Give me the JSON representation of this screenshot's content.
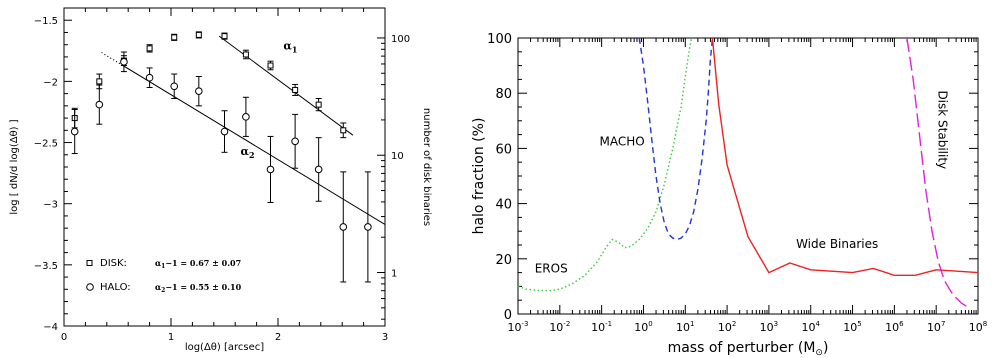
{
  "chart_data": [
    {
      "type": "scatter",
      "xlabel": "log(Δθ) [arcsec]",
      "ylabel": "log [ dN/d log(Δθ) ]",
      "y2label": "number of disk binaries",
      "xlim": [
        0,
        3
      ],
      "ylim": [
        -4,
        -1.4
      ],
      "y2_tick_labels": [
        "1",
        "10",
        "100"
      ],
      "y2_tick_values": [
        1,
        10,
        100
      ],
      "x_tick_labels": [
        "0",
        "1",
        "2",
        "3"
      ],
      "y_tick_labels": [
        "-1.5",
        "-2",
        "-2.5",
        "-3",
        "-3.5",
        "-4"
      ],
      "series": [
        {
          "name": "DISK:",
          "marker": "square",
          "points": [
            {
              "x": 0.1,
              "y": -2.3,
              "yerr": 0.08
            },
            {
              "x": 0.33,
              "y": -2.0,
              "yerr": 0.06
            },
            {
              "x": 0.56,
              "y": -1.83,
              "yerr": 0.04
            },
            {
              "x": 0.8,
              "y": -1.73,
              "yerr": 0.03
            },
            {
              "x": 1.03,
              "y": -1.64,
              "yerr": 0.025
            },
            {
              "x": 1.26,
              "y": -1.62,
              "yerr": 0.025
            },
            {
              "x": 1.5,
              "y": -1.63,
              "yerr": 0.025
            },
            {
              "x": 1.7,
              "y": -1.78,
              "yerr": 0.035
            },
            {
              "x": 1.93,
              "y": -1.87,
              "yerr": 0.035
            },
            {
              "x": 2.16,
              "y": -2.07,
              "yerr": 0.045
            },
            {
              "x": 2.38,
              "y": -2.19,
              "yerr": 0.05
            },
            {
              "x": 2.61,
              "y": -2.4,
              "yerr": 0.06
            }
          ]
        },
        {
          "name": "HALO:",
          "marker": "circle",
          "points": [
            {
              "x": 0.1,
              "y": -2.41,
              "yerr": 0.18
            },
            {
              "x": 0.33,
              "y": -2.19,
              "yerr": 0.16
            },
            {
              "x": 0.56,
              "y": -1.84,
              "yerr": 0.08
            },
            {
              "x": 0.8,
              "y": -1.97,
              "yerr": 0.08
            },
            {
              "x": 1.03,
              "y": -2.04,
              "yerr": 0.1
            },
            {
              "x": 1.26,
              "y": -2.08,
              "yerr": 0.12
            },
            {
              "x": 1.5,
              "y": -2.41,
              "yerr": 0.17
            },
            {
              "x": 1.7,
              "y": -2.29,
              "yerr": 0.16
            },
            {
              "x": 1.93,
              "y": -2.72,
              "yerr": 0.27
            },
            {
              "x": 2.16,
              "y": -2.49,
              "yerr": 0.22
            },
            {
              "x": 2.38,
              "y": -2.72,
              "yerr": 0.26
            },
            {
              "x": 2.61,
              "y": -3.19,
              "yerr": 0.45
            },
            {
              "x": 2.84,
              "y": -3.19,
              "yerr": 0.45
            }
          ]
        }
      ],
      "fits": [
        {
          "label": "α1",
          "x": [
            1.45,
            2.7
          ],
          "y": [
            -1.63,
            -2.44
          ],
          "dotted_x": null
        },
        {
          "label": "α2",
          "x": [
            0.55,
            3.0
          ],
          "y": [
            -1.87,
            -3.17
          ],
          "dotted_x": [
            0.35,
            0.55
          ]
        }
      ],
      "fit_labels": [
        {
          "text": "α",
          "sub": "1",
          "x": 2.05,
          "y": -1.74
        },
        {
          "text": "α",
          "sub": "2",
          "x": 1.65,
          "y": -2.6
        }
      ],
      "legend": [
        {
          "marker": "square",
          "name": "DISK:",
          "formula_main": "α",
          "formula_sub": "1",
          "formula_rest": "−1  =  0.67 ± 0.07"
        },
        {
          "marker": "circle",
          "name": "HALO:",
          "formula_main": "α",
          "formula_sub": "2",
          "formula_rest": "−1  =  0.55 ± 0.10"
        }
      ],
      "legend_placement": "bottom-left"
    },
    {
      "type": "line",
      "xlabel": "mass of perturber (M⊙)",
      "xlabel_main": "mass of perturber (M",
      "xlabel_sub": "⊙",
      "xlabel_end": ")",
      "ylabel": "halo fraction (%)",
      "xscale": "log",
      "xlim": [
        -3,
        8
      ],
      "ylim": [
        0,
        100
      ],
      "x_tick_exponents": [
        "-3",
        "-2",
        "-1",
        "0",
        "1",
        "2",
        "3",
        "4",
        "5",
        "6",
        "7",
        "8"
      ],
      "y_tick_labels": [
        "0",
        "20",
        "40",
        "60",
        "80",
        "100"
      ],
      "series": [
        {
          "name": "EROS",
          "color": "#33cc33",
          "dash": "dotted",
          "points": [
            [
              -3,
              10
            ],
            [
              -2.8,
              9
            ],
            [
              -2.5,
              8.5
            ],
            [
              -2.2,
              8.5
            ],
            [
              -2,
              9
            ],
            [
              -1.7,
              11
            ],
            [
              -1.4,
              14
            ],
            [
              -1.1,
              19
            ],
            [
              -0.9,
              24
            ],
            [
              -0.75,
              27
            ],
            [
              -0.6,
              26
            ],
            [
              -0.45,
              24
            ],
            [
              -0.3,
              24.5
            ],
            [
              -0.1,
              27
            ],
            [
              0.1,
              31
            ],
            [
              0.3,
              37
            ],
            [
              0.5,
              47
            ],
            [
              0.7,
              60
            ],
            [
              0.9,
              75
            ],
            [
              1.0,
              86
            ],
            [
              1.1,
              96
            ],
            [
              1.15,
              100
            ]
          ]
        },
        {
          "name": "MACHO",
          "color": "#2233dd",
          "dash": "dashed",
          "points": [
            [
              -0.1,
              100
            ],
            [
              0.0,
              90
            ],
            [
              0.1,
              77
            ],
            [
              0.2,
              63
            ],
            [
              0.3,
              50
            ],
            [
              0.4,
              40
            ],
            [
              0.5,
              33
            ],
            [
              0.6,
              29
            ],
            [
              0.7,
              27.5
            ],
            [
              0.8,
              27
            ],
            [
              0.9,
              27.5
            ],
            [
              1.0,
              29
            ],
            [
              1.1,
              32
            ],
            [
              1.2,
              37
            ],
            [
              1.3,
              45
            ],
            [
              1.4,
              56
            ],
            [
              1.5,
              70
            ],
            [
              1.55,
              80
            ],
            [
              1.6,
              92
            ],
            [
              1.65,
              100
            ]
          ]
        },
        {
          "name": "Wide Binaries",
          "color": "#ee2222",
          "dash": "solid",
          "points": [
            [
              1.65,
              100
            ],
            [
              1.8,
              76
            ],
            [
              2.0,
              54
            ],
            [
              2.5,
              28
            ],
            [
              3.0,
              15
            ],
            [
              3.5,
              18.5
            ],
            [
              4.0,
              16
            ],
            [
              4.5,
              15.5
            ],
            [
              5.0,
              15
            ],
            [
              5.5,
              16.5
            ],
            [
              6.0,
              14
            ],
            [
              6.5,
              14
            ],
            [
              7.0,
              16
            ],
            [
              7.5,
              15.5
            ],
            [
              8.0,
              15
            ]
          ]
        },
        {
          "name": "Disk Stability",
          "color": "#dd22dd",
          "dash": "longdash",
          "points": [
            [
              6.3,
              100
            ],
            [
              6.45,
              85
            ],
            [
              6.6,
              65
            ],
            [
              6.75,
              45
            ],
            [
              6.9,
              30
            ],
            [
              7.05,
              19
            ],
            [
              7.2,
              12
            ],
            [
              7.4,
              7
            ],
            [
              7.6,
              4
            ],
            [
              7.8,
              2
            ]
          ]
        }
      ],
      "annotations": [
        {
          "text": "MACHO",
          "x": -1.05,
          "y": 61,
          "rotate": 0
        },
        {
          "text": "EROS",
          "x": -2.6,
          "y": 15,
          "rotate": 0
        },
        {
          "text": "Wide Binaries",
          "x": 3.65,
          "y": 24,
          "rotate": 0
        },
        {
          "text": "Disk Stability",
          "x": 7.05,
          "y": 81,
          "rotate": 90
        }
      ]
    }
  ]
}
